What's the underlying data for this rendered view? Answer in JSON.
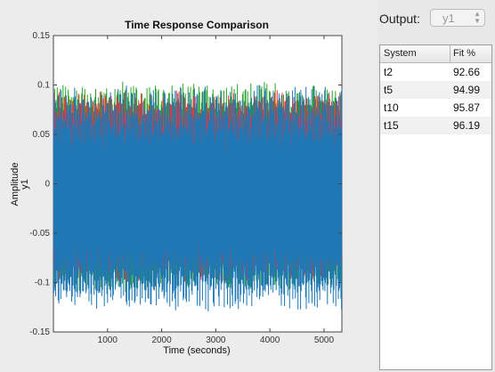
{
  "plot": {
    "title": "Time Response Comparison",
    "xlabel": "Time (seconds)",
    "ylabel": "Amplitude",
    "channel_label": "y1"
  },
  "output": {
    "label": "Output:",
    "selected": "y1"
  },
  "fit_table": {
    "headers": [
      "System",
      "Fit %"
    ],
    "rows": [
      {
        "system": "t2",
        "fit": "92.66"
      },
      {
        "system": "t5",
        "fit": "94.99"
      },
      {
        "system": "t10",
        "fit": "95.87"
      },
      {
        "system": "t15",
        "fit": "96.19"
      }
    ]
  },
  "chart_data": {
    "type": "line",
    "title": "Time Response Comparison",
    "xlabel": "Time (seconds)",
    "ylabel": "Amplitude",
    "xlim": [
      0,
      5330
    ],
    "ylim": [
      -0.15,
      0.15
    ],
    "x_ticks": [
      1000,
      2000,
      3000,
      4000,
      5000
    ],
    "y_ticks": [
      -0.15,
      -0.1,
      -0.05,
      0,
      0.05,
      0.1,
      0.15
    ],
    "x_tick_labels": [
      "1000",
      "2000",
      "3000",
      "4000",
      "5000"
    ],
    "y_tick_labels": [
      "-0.15",
      "-0.1",
      "-0.05",
      "0",
      "0.05",
      "0.1",
      "0.15"
    ],
    "grid": false,
    "series": [
      {
        "color": "#2ca02c",
        "approx_range": [
          -0.11,
          0.105
        ]
      },
      {
        "color": "#ff3030",
        "approx_range": [
          -0.1,
          0.095
        ]
      },
      {
        "color": "#1f77b4",
        "approx_range": [
          -0.13,
          0.1
        ]
      }
    ]
  },
  "colors": {
    "blue_series": "#1f77b4",
    "green_series": "#2ca02c",
    "red_series": "#ff3030"
  }
}
